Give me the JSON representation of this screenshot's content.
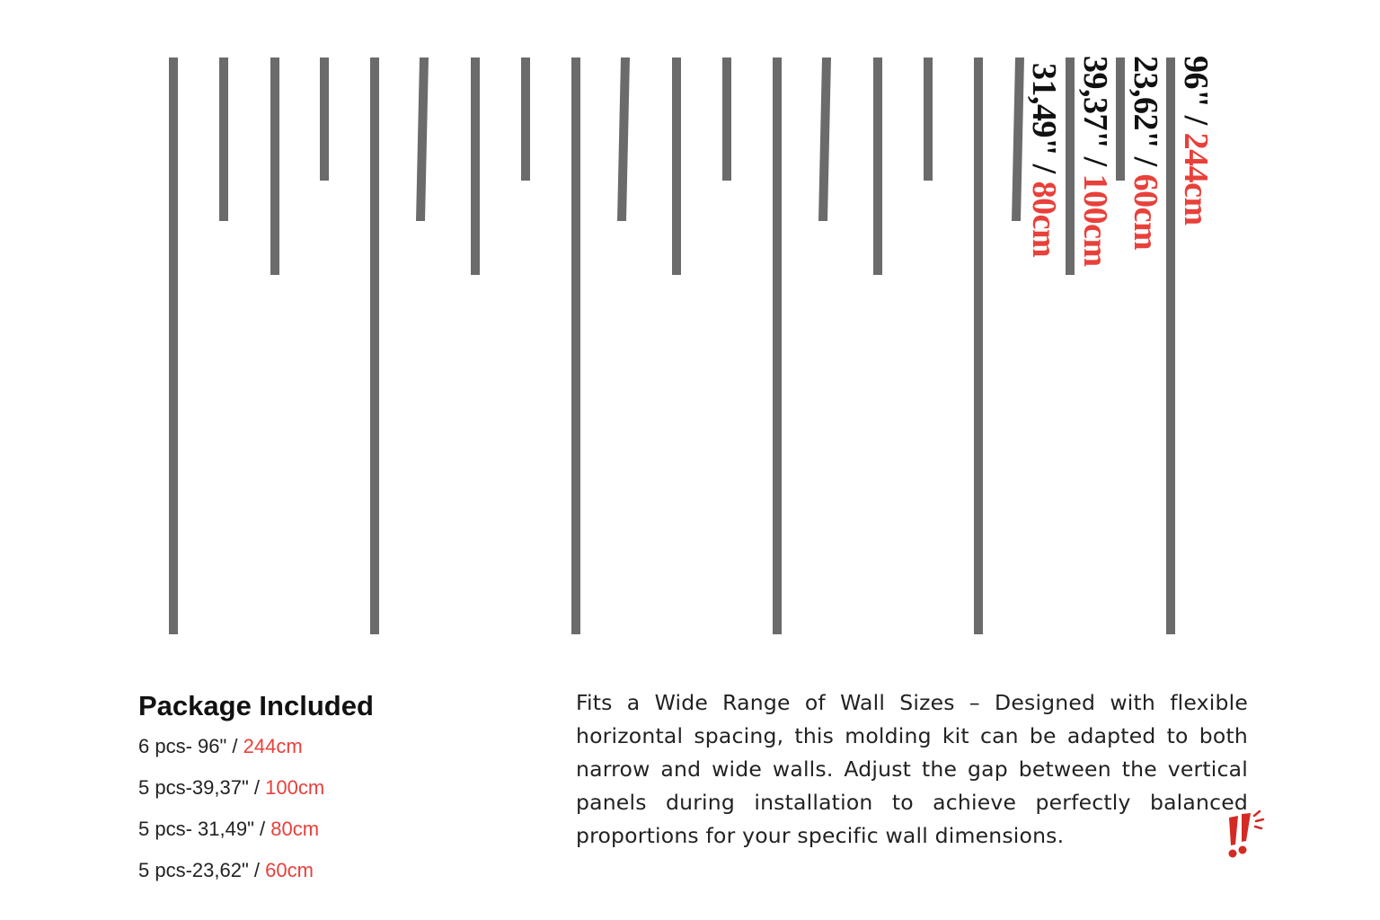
{
  "strips": [
    {
      "name": "strip-96",
      "length_in": "96\"",
      "length_cm": "244cm"
    },
    {
      "name": "strip-23-62",
      "length_in": "23,62\"",
      "length_cm": "60cm"
    },
    {
      "name": "strip-39-37",
      "length_in": "39,37\"",
      "length_cm": "100cm"
    },
    {
      "name": "strip-31-49",
      "length_in": "31,49\"",
      "length_cm": "80cm"
    }
  ],
  "labels": {
    "sep": " / ",
    "l96_main": "96\"",
    "l96_accent": "244cm",
    "l60_main": "23,62\"",
    "l60_accent": "60cm",
    "l100_main": "39,37\"",
    "l100_accent": "100cm",
    "l80_main": "31,49\"",
    "l80_accent": "80cm"
  },
  "package": {
    "title": "Package Included",
    "rows": [
      {
        "prefix": "6 pcs- 96\" / ",
        "accent": "244cm"
      },
      {
        "prefix": "5 pcs-39,37\" / ",
        "accent": "100cm"
      },
      {
        "prefix": "5 pcs- 31,49\" / ",
        "accent": "80cm"
      },
      {
        "prefix": "5 pcs-23,62\" / ",
        "accent": "60cm"
      }
    ]
  },
  "description": "Fits a Wide Range of Wall Sizes – Designed with flexible horizontal spacing, this molding kit can be adapted to both narrow and wide walls. Adjust the gap between the vertical panels during installation to achieve perfectly balanced proportions for your specific wall dimensions.",
  "colors": {
    "strip": "#6b6b6b",
    "accent": "#e8403a",
    "text": "#111111"
  },
  "icons": {
    "exclaim": "double-exclamation-icon"
  }
}
